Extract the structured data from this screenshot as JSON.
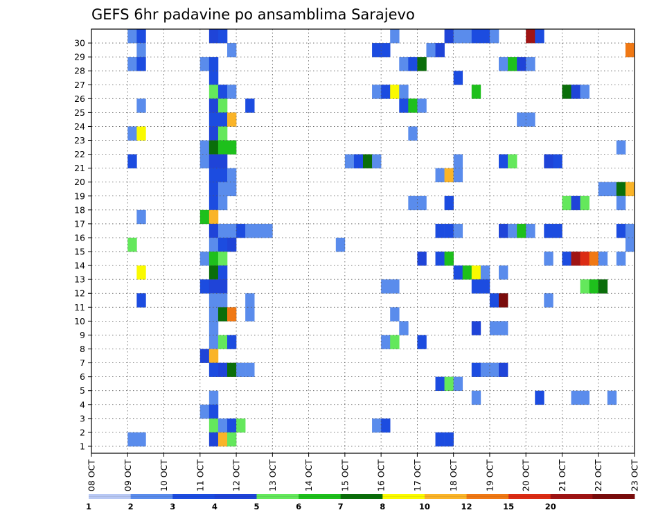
{
  "chart_data": {
    "type": "heatmap",
    "title": "GEFS 6hr padavine po ansamblima Sarajevo",
    "xlabel": "",
    "ylabel": "",
    "x_unit": "6-hour step",
    "x_range": [
      0,
      60
    ],
    "x_tick_labels": [
      "08 OCT",
      "09 OCT",
      "10 OCT",
      "11 OCT",
      "12 OCT",
      "13 OCT",
      "14 OCT",
      "15 OCT",
      "16 OCT",
      "17 OCT",
      "18 OCT",
      "19 OCT",
      "20 OCT",
      "21 OCT",
      "22 OCT",
      "23 OCT"
    ],
    "y_range": [
      0,
      30
    ],
    "y_tick_labels": [
      "1",
      "2",
      "3",
      "4",
      "5",
      "6",
      "7",
      "8",
      "9",
      "10",
      "11",
      "12",
      "13",
      "14",
      "15",
      "16",
      "17",
      "18",
      "19",
      "20",
      "21",
      "22",
      "23",
      "24",
      "25",
      "26",
      "27",
      "28",
      "29",
      "30"
    ],
    "grid": true,
    "grid_style": "dotted",
    "legend": {
      "placement": "bottom",
      "labels": [
        "1",
        "2",
        "3",
        "4",
        "5",
        "6",
        "7",
        "8",
        "10",
        "12",
        "15",
        "20"
      ],
      "colors": [
        "#b8c8f4",
        "#5a8cec",
        "#1c4ce0",
        "#1f44d8",
        "#64e85c",
        "#1ec01c",
        "#0a6e0a",
        "#fafa00",
        "#fab428",
        "#f07814",
        "#dc2c14",
        "#a01414",
        "#7a0c0c"
      ]
    },
    "cells": [
      [
        4,
        30,
        1
      ],
      [
        5,
        30,
        2
      ],
      [
        13,
        30,
        3
      ],
      [
        14,
        30,
        2
      ],
      [
        33,
        30,
        1
      ],
      [
        39,
        30,
        3
      ],
      [
        40,
        30,
        1
      ],
      [
        41,
        30,
        1
      ],
      [
        42,
        30,
        2
      ],
      [
        43,
        30,
        2
      ],
      [
        44,
        30,
        1
      ],
      [
        48,
        30,
        11
      ],
      [
        49,
        30,
        2
      ],
      [
        5,
        29,
        1
      ],
      [
        15,
        29,
        1
      ],
      [
        31,
        29,
        2
      ],
      [
        32,
        29,
        2
      ],
      [
        37,
        29,
        1
      ],
      [
        38,
        29,
        3
      ],
      [
        59,
        29,
        9
      ],
      [
        4,
        28,
        1
      ],
      [
        5,
        28,
        2
      ],
      [
        12,
        28,
        1
      ],
      [
        13,
        28,
        2
      ],
      [
        34,
        28,
        1
      ],
      [
        35,
        28,
        2
      ],
      [
        36,
        28,
        6
      ],
      [
        45,
        28,
        1
      ],
      [
        46,
        28,
        5
      ],
      [
        47,
        28,
        3
      ],
      [
        48,
        28,
        1
      ],
      [
        13,
        27,
        2
      ],
      [
        40,
        27,
        2
      ],
      [
        13,
        26,
        4
      ],
      [
        14,
        26,
        2
      ],
      [
        15,
        26,
        1
      ],
      [
        31,
        26,
        1
      ],
      [
        32,
        26,
        2
      ],
      [
        33,
        26,
        7
      ],
      [
        34,
        26,
        1
      ],
      [
        42,
        26,
        5
      ],
      [
        52,
        26,
        6
      ],
      [
        53,
        26,
        3
      ],
      [
        54,
        26,
        1
      ],
      [
        5,
        25,
        1
      ],
      [
        13,
        25,
        3
      ],
      [
        14,
        25,
        4
      ],
      [
        17,
        25,
        2
      ],
      [
        34,
        25,
        2
      ],
      [
        35,
        25,
        5
      ],
      [
        36,
        25,
        1
      ],
      [
        13,
        24,
        2
      ],
      [
        14,
        24,
        2
      ],
      [
        15,
        24,
        8
      ],
      [
        47,
        24,
        1
      ],
      [
        48,
        24,
        1
      ],
      [
        4,
        23,
        1
      ],
      [
        5,
        23,
        7
      ],
      [
        13,
        23,
        3
      ],
      [
        14,
        23,
        4
      ],
      [
        35,
        23,
        1
      ],
      [
        12,
        22,
        1
      ],
      [
        13,
        22,
        6
      ],
      [
        14,
        22,
        5
      ],
      [
        15,
        22,
        5
      ],
      [
        58,
        22,
        1
      ],
      [
        4,
        21,
        2
      ],
      [
        12,
        21,
        1
      ],
      [
        13,
        21,
        3
      ],
      [
        14,
        21,
        3
      ],
      [
        28,
        21,
        1
      ],
      [
        29,
        21,
        2
      ],
      [
        30,
        21,
        6
      ],
      [
        31,
        21,
        1
      ],
      [
        40,
        21,
        1
      ],
      [
        45,
        21,
        2
      ],
      [
        46,
        21,
        4
      ],
      [
        50,
        21,
        3
      ],
      [
        51,
        21,
        2
      ],
      [
        13,
        20,
        2
      ],
      [
        14,
        20,
        2
      ],
      [
        15,
        20,
        1
      ],
      [
        38,
        20,
        1
      ],
      [
        39,
        20,
        8
      ],
      [
        40,
        20,
        1
      ],
      [
        13,
        19,
        2
      ],
      [
        14,
        19,
        1
      ],
      [
        15,
        19,
        1
      ],
      [
        56,
        19,
        1
      ],
      [
        57,
        19,
        1
      ],
      [
        58,
        19,
        6
      ],
      [
        59,
        19,
        8
      ],
      [
        13,
        18,
        2
      ],
      [
        14,
        18,
        1
      ],
      [
        35,
        18,
        1
      ],
      [
        36,
        18,
        1
      ],
      [
        39,
        18,
        2
      ],
      [
        52,
        18,
        4
      ],
      [
        53,
        18,
        3
      ],
      [
        54,
        18,
        4
      ],
      [
        58,
        18,
        1
      ],
      [
        5,
        17,
        1
      ],
      [
        12,
        17,
        5
      ],
      [
        13,
        17,
        8
      ],
      [
        13,
        16,
        3
      ],
      [
        14,
        16,
        1
      ],
      [
        15,
        16,
        1
      ],
      [
        16,
        16,
        2
      ],
      [
        17,
        16,
        1
      ],
      [
        18,
        16,
        1
      ],
      [
        19,
        16,
        1
      ],
      [
        38,
        16,
        2
      ],
      [
        39,
        16,
        2
      ],
      [
        40,
        16,
        1
      ],
      [
        45,
        16,
        3
      ],
      [
        46,
        16,
        1
      ],
      [
        47,
        16,
        5
      ],
      [
        48,
        16,
        1
      ],
      [
        50,
        16,
        2
      ],
      [
        51,
        16,
        2
      ],
      [
        58,
        16,
        2
      ],
      [
        59,
        16,
        1
      ],
      [
        4,
        15,
        4
      ],
      [
        13,
        15,
        1
      ],
      [
        14,
        15,
        2
      ],
      [
        15,
        15,
        3
      ],
      [
        27,
        15,
        1
      ],
      [
        59,
        15,
        1
      ],
      [
        12,
        14,
        1
      ],
      [
        13,
        14,
        5
      ],
      [
        14,
        14,
        4
      ],
      [
        36,
        14,
        3
      ],
      [
        38,
        14,
        2
      ],
      [
        39,
        14,
        5
      ],
      [
        50,
        14,
        1
      ],
      [
        52,
        14,
        2
      ],
      [
        53,
        14,
        11
      ],
      [
        54,
        14,
        10
      ],
      [
        55,
        14,
        9
      ],
      [
        56,
        14,
        1
      ],
      [
        58,
        14,
        1
      ],
      [
        5,
        13,
        7
      ],
      [
        13,
        13,
        6
      ],
      [
        14,
        13,
        2
      ],
      [
        40,
        13,
        2
      ],
      [
        41,
        13,
        5
      ],
      [
        42,
        13,
        7
      ],
      [
        43,
        13,
        1
      ],
      [
        45,
        13,
        1
      ],
      [
        12,
        12,
        2
      ],
      [
        13,
        12,
        3
      ],
      [
        14,
        12,
        3
      ],
      [
        32,
        12,
        1
      ],
      [
        33,
        12,
        1
      ],
      [
        42,
        12,
        2
      ],
      [
        43,
        12,
        2
      ],
      [
        54,
        12,
        4
      ],
      [
        55,
        12,
        5
      ],
      [
        56,
        12,
        6
      ],
      [
        5,
        11,
        2
      ],
      [
        13,
        11,
        1
      ],
      [
        14,
        11,
        1
      ],
      [
        17,
        11,
        1
      ],
      [
        44,
        11,
        2
      ],
      [
        45,
        11,
        12
      ],
      [
        50,
        11,
        1
      ],
      [
        13,
        10,
        1
      ],
      [
        14,
        10,
        6
      ],
      [
        15,
        10,
        9
      ],
      [
        17,
        10,
        1
      ],
      [
        33,
        10,
        1
      ],
      [
        13,
        9,
        1
      ],
      [
        34,
        9,
        1
      ],
      [
        42,
        9,
        3
      ],
      [
        44,
        9,
        1
      ],
      [
        45,
        9,
        1
      ],
      [
        13,
        8,
        1
      ],
      [
        14,
        8,
        4
      ],
      [
        15,
        8,
        2
      ],
      [
        32,
        8,
        1
      ],
      [
        33,
        8,
        4
      ],
      [
        36,
        8,
        2
      ],
      [
        12,
        7,
        3
      ],
      [
        13,
        7,
        8
      ],
      [
        13,
        6,
        2
      ],
      [
        14,
        6,
        3
      ],
      [
        15,
        6,
        6
      ],
      [
        16,
        6,
        1
      ],
      [
        17,
        6,
        1
      ],
      [
        42,
        6,
        2
      ],
      [
        43,
        6,
        1
      ],
      [
        44,
        6,
        1
      ],
      [
        45,
        6,
        3
      ],
      [
        38,
        5,
        2
      ],
      [
        39,
        5,
        4
      ],
      [
        40,
        5,
        1
      ],
      [
        13,
        4,
        1
      ],
      [
        42,
        4,
        1
      ],
      [
        49,
        4,
        2
      ],
      [
        53,
        4,
        1
      ],
      [
        54,
        4,
        1
      ],
      [
        57,
        4,
        1
      ],
      [
        12,
        3,
        1
      ],
      [
        13,
        3,
        2
      ],
      [
        13,
        2,
        4
      ],
      [
        14,
        2,
        1
      ],
      [
        15,
        2,
        2
      ],
      [
        16,
        2,
        4
      ],
      [
        31,
        2,
        1
      ],
      [
        32,
        2,
        2
      ],
      [
        4,
        1,
        1
      ],
      [
        5,
        1,
        1
      ],
      [
        13,
        1,
        3
      ],
      [
        14,
        1,
        8
      ],
      [
        15,
        1,
        4
      ],
      [
        38,
        1,
        2
      ],
      [
        39,
        1,
        2
      ]
    ]
  }
}
